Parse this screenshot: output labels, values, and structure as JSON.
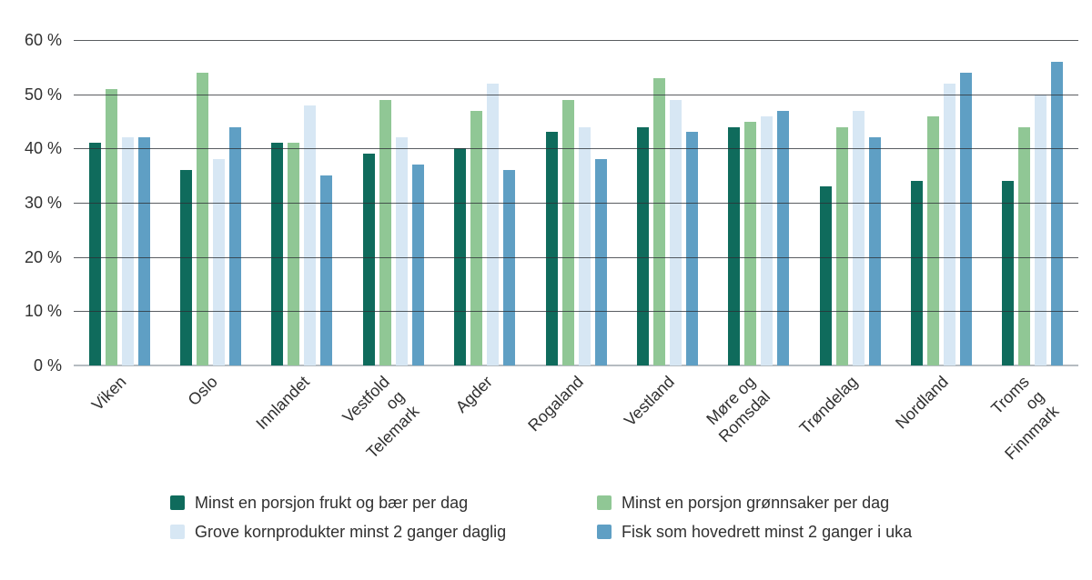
{
  "chart_data": {
    "type": "bar",
    "title": "",
    "categories": [
      "Viken",
      "Oslo",
      "Innlandet",
      "Vestfold og\nTelemark",
      "Agder",
      "Rogaland",
      "Vestland",
      "Møre og\nRomsdal",
      "Trøndelag",
      "Nordland",
      "Troms og\nFinnmark"
    ],
    "series": [
      {
        "name": "Minst en porsjon frukt og bær per dag",
        "color": "#0F6B5C",
        "values": [
          41,
          36,
          41,
          39,
          40,
          43,
          44,
          44,
          33,
          34,
          34
        ]
      },
      {
        "name": "Minst en porsjon grønnsaker per dag",
        "color": "#90C795",
        "values": [
          51,
          54,
          41,
          49,
          47,
          49,
          53,
          45,
          44,
          46,
          44
        ]
      },
      {
        "name": "Grove kornprodukter minst 2 ganger daglig",
        "color": "#D7E7F4",
        "values": [
          42,
          38,
          48,
          42,
          52,
          44,
          49,
          46,
          47,
          52,
          50
        ]
      },
      {
        "name": "Fisk som hovedrett minst 2 ganger i uka",
        "color": "#5F9FC4",
        "values": [
          42,
          44,
          35,
          37,
          36,
          38,
          43,
          47,
          42,
          54,
          56
        ]
      }
    ],
    "y_axis": {
      "min": 0,
      "max": 60,
      "step": 10,
      "tick_labels": [
        "0 %",
        "10 %",
        "20 %",
        "30 %",
        "40 %",
        "50 %",
        "60 %"
      ]
    },
    "grid": true,
    "legend_position": "bottom"
  }
}
